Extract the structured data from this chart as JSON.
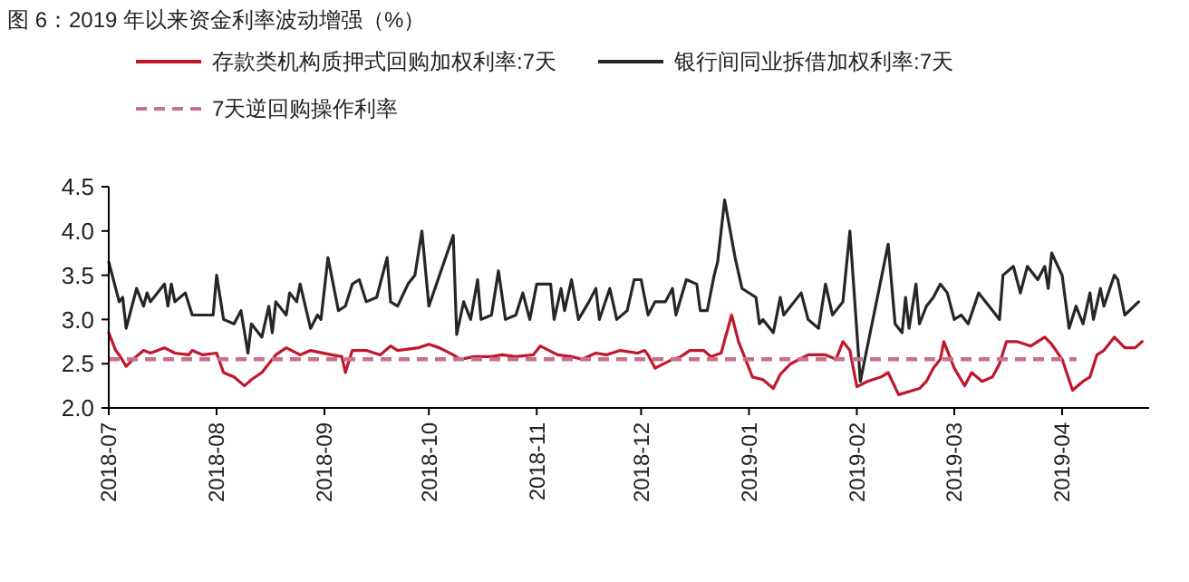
{
  "chart_data": {
    "type": "line",
    "title": "图 6：2019 年以来资金利率波动增强（%）",
    "xlim": [
      "2018-07-01",
      "2019-04-26"
    ],
    "xticks": [
      {
        "value": "2018-07-01",
        "label": "2018-07"
      },
      {
        "value": "2018-08-01",
        "label": "2018-08"
      },
      {
        "value": "2018-09-01",
        "label": "2018-09"
      },
      {
        "value": "2018-10-01",
        "label": "2018-10"
      },
      {
        "value": "2018-11-01",
        "label": "2018-11"
      },
      {
        "value": "2018-12-01",
        "label": "2018-12"
      },
      {
        "value": "2019-01-01",
        "label": "2019-01"
      },
      {
        "value": "2019-02-01",
        "label": "2019-02"
      },
      {
        "value": "2019-03-01",
        "label": "2019-03"
      },
      {
        "value": "2019-04-01",
        "label": "2019-04"
      }
    ],
    "ylim": [
      2,
      4.5
    ],
    "yticks": [
      {
        "value": 2,
        "label": "2.0"
      },
      {
        "value": 2.5,
        "label": "2.5"
      },
      {
        "value": 3,
        "label": "3.0"
      },
      {
        "value": 3.5,
        "label": "3.5"
      },
      {
        "value": 4,
        "label": "4.0"
      },
      {
        "value": 4.5,
        "label": "4.5"
      }
    ],
    "grid": false,
    "legend": "top",
    "line_style": "solid",
    "marker": "none",
    "series": [
      {
        "name": "存款类机构质押式回购加权利率:7天",
        "color": "#c0172d",
        "x": [
          "2018-07-01",
          "2018-07-03",
          "2018-07-04",
          "2018-07-06",
          "2018-07-08",
          "2018-07-11",
          "2018-07-13",
          "2018-07-17",
          "2018-07-20",
          "2018-07-24",
          "2018-07-25",
          "2018-07-28",
          "2018-08-01",
          "2018-08-03",
          "2018-08-06",
          "2018-08-09",
          "2018-08-11",
          "2018-08-14",
          "2018-08-18",
          "2018-08-21",
          "2018-08-25",
          "2018-08-28",
          "2018-09-03",
          "2018-09-06",
          "2018-09-07",
          "2018-09-09",
          "2018-09-13",
          "2018-09-17",
          "2018-09-20",
          "2018-09-22",
          "2018-09-28",
          "2018-10-01",
          "2018-10-04",
          "2018-10-08",
          "2018-10-10",
          "2018-10-14",
          "2018-10-19",
          "2018-10-22",
          "2018-10-26",
          "2018-10-31",
          "2018-11-02",
          "2018-11-07",
          "2018-11-11",
          "2018-11-14",
          "2018-11-18",
          "2018-11-21",
          "2018-11-25",
          "2018-11-30",
          "2018-12-02",
          "2018-12-03",
          "2018-12-05",
          "2018-12-10",
          "2018-12-12",
          "2018-12-15",
          "2018-12-19",
          "2018-12-21",
          "2018-12-24",
          "2018-12-27",
          "2018-12-29",
          "2019-01-02",
          "2019-01-05",
          "2019-01-08",
          "2019-01-10",
          "2019-01-13",
          "2019-01-18",
          "2019-01-23",
          "2019-01-26",
          "2019-01-28",
          "2019-01-30",
          "2019-02-01",
          "2019-02-04",
          "2019-02-08",
          "2019-02-10",
          "2019-02-13",
          "2019-02-19",
          "2019-02-21",
          "2019-02-23",
          "2019-02-25",
          "2019-02-26",
          "2019-03-01",
          "2019-03-04",
          "2019-03-06",
          "2019-03-09",
          "2019-03-12",
          "2019-03-14",
          "2019-03-16",
          "2019-03-19",
          "2019-03-23",
          "2019-03-27",
          "2019-03-29",
          "2019-04-01",
          "2019-04-04",
          "2019-04-07",
          "2019-04-09",
          "2019-04-11",
          "2019-04-13",
          "2019-04-16",
          "2019-04-19",
          "2019-04-22",
          "2019-04-24"
        ],
        "values": [
          2.85,
          2.65,
          2.6,
          2.47,
          2.55,
          2.65,
          2.62,
          2.68,
          2.62,
          2.6,
          2.65,
          2.6,
          2.62,
          2.4,
          2.35,
          2.25,
          2.32,
          2.4,
          2.6,
          2.68,
          2.6,
          2.65,
          2.6,
          2.58,
          2.4,
          2.65,
          2.65,
          2.6,
          2.7,
          2.65,
          2.68,
          2.72,
          2.68,
          2.6,
          2.55,
          2.58,
          2.58,
          2.6,
          2.58,
          2.6,
          2.7,
          2.6,
          2.58,
          2.55,
          2.62,
          2.6,
          2.65,
          2.62,
          2.65,
          2.6,
          2.45,
          2.55,
          2.57,
          2.65,
          2.65,
          2.58,
          2.62,
          3.05,
          2.75,
          2.35,
          2.32,
          2.22,
          2.38,
          2.5,
          2.6,
          2.6,
          2.55,
          2.75,
          2.65,
          2.24,
          2.3,
          2.35,
          2.4,
          2.15,
          2.22,
          2.3,
          2.45,
          2.55,
          2.75,
          2.45,
          2.25,
          2.4,
          2.3,
          2.35,
          2.5,
          2.75,
          2.75,
          2.7,
          2.8,
          2.72,
          2.55,
          2.2,
          2.3,
          2.35,
          2.6,
          2.65,
          2.8,
          2.68,
          2.68,
          2.75
        ]
      },
      {
        "name": "银行间同业拆借加权利率:7天",
        "color": "#262626",
        "x": [
          "2018-07-01",
          "2018-07-04",
          "2018-07-05",
          "2018-07-06",
          "2018-07-09",
          "2018-07-11",
          "2018-07-12",
          "2018-07-13",
          "2018-07-17",
          "2018-07-18",
          "2018-07-19",
          "2018-07-20",
          "2018-07-23",
          "2018-07-25",
          "2018-07-31",
          "2018-08-01",
          "2018-08-03",
          "2018-08-06",
          "2018-08-08",
          "2018-08-10",
          "2018-08-11",
          "2018-08-14",
          "2018-08-16",
          "2018-08-17",
          "2018-08-18",
          "2018-08-21",
          "2018-08-22",
          "2018-08-24",
          "2018-08-25",
          "2018-08-28",
          "2018-08-30",
          "2018-08-31",
          "2018-09-02",
          "2018-09-05",
          "2018-09-07",
          "2018-09-09",
          "2018-09-11",
          "2018-09-13",
          "2018-09-16",
          "2018-09-19",
          "2018-09-20",
          "2018-09-22",
          "2018-09-25",
          "2018-09-27",
          "2018-09-29",
          "2018-10-01",
          "2018-10-08",
          "2018-10-09",
          "2018-10-11",
          "2018-10-13",
          "2018-10-15",
          "2018-10-16",
          "2018-10-19",
          "2018-10-21",
          "2018-10-23",
          "2018-10-26",
          "2018-10-28",
          "2018-10-30",
          "2018-11-01",
          "2018-11-05",
          "2018-11-06",
          "2018-11-08",
          "2018-11-09",
          "2018-11-11",
          "2018-11-13",
          "2018-11-16",
          "2018-11-18",
          "2018-11-19",
          "2018-11-22",
          "2018-11-24",
          "2018-11-27",
          "2018-11-29",
          "2018-12-01",
          "2018-12-03",
          "2018-12-05",
          "2018-12-08",
          "2018-12-10",
          "2018-12-11",
          "2018-12-14",
          "2018-12-17",
          "2018-12-18",
          "2018-12-20",
          "2018-12-22",
          "2018-12-23",
          "2018-12-25",
          "2018-12-28",
          "2018-12-30",
          "2019-01-03",
          "2019-01-04",
          "2019-01-05",
          "2019-01-08",
          "2019-01-10",
          "2019-01-11",
          "2019-01-14",
          "2019-01-16",
          "2019-01-18",
          "2019-01-21",
          "2019-01-23",
          "2019-01-25",
          "2019-01-28",
          "2019-01-30",
          "2019-02-02",
          "2019-02-10",
          "2019-02-12",
          "2019-02-14",
          "2019-02-15",
          "2019-02-16",
          "2019-02-18",
          "2019-02-19",
          "2019-02-21",
          "2019-02-23",
          "2019-02-25",
          "2019-02-27",
          "2019-03-01",
          "2019-03-03",
          "2019-03-05",
          "2019-03-08",
          "2019-03-11",
          "2019-03-13",
          "2019-03-14",
          "2019-03-15",
          "2019-03-18",
          "2019-03-20",
          "2019-03-22",
          "2019-03-25",
          "2019-03-27",
          "2019-03-28",
          "2019-03-29",
          "2019-04-01",
          "2019-04-03",
          "2019-04-05",
          "2019-04-07",
          "2019-04-09",
          "2019-04-10",
          "2019-04-12",
          "2019-04-13",
          "2019-04-16",
          "2019-04-17",
          "2019-04-19",
          "2019-04-23"
        ],
        "values": [
          3.65,
          3.2,
          3.25,
          2.9,
          3.35,
          3.15,
          3.3,
          3.2,
          3.4,
          3.15,
          3.4,
          3.2,
          3.3,
          3.05,
          3.05,
          3.5,
          3.0,
          2.95,
          3.1,
          2.62,
          2.95,
          2.8,
          3.15,
          2.85,
          3.2,
          3.05,
          3.3,
          3.2,
          3.4,
          2.9,
          3.05,
          3.0,
          3.7,
          3.1,
          3.15,
          3.4,
          3.45,
          3.2,
          3.25,
          3.7,
          3.2,
          3.15,
          3.4,
          3.5,
          4.0,
          3.15,
          3.95,
          2.83,
          3.2,
          3.0,
          3.45,
          3.0,
          3.05,
          3.55,
          3.0,
          3.05,
          3.3,
          3.0,
          3.4,
          3.4,
          3.0,
          3.35,
          3.1,
          3.45,
          3.0,
          3.2,
          3.35,
          3.0,
          3.35,
          3.0,
          3.1,
          3.45,
          3.45,
          3.05,
          3.2,
          3.2,
          3.35,
          3.05,
          3.45,
          3.4,
          3.1,
          3.1,
          3.5,
          3.65,
          4.35,
          3.7,
          3.35,
          3.25,
          2.95,
          3.0,
          2.85,
          3.25,
          3.05,
          3.2,
          3.3,
          3.0,
          2.9,
          3.4,
          3.05,
          3.2,
          4.0,
          2.3,
          3.85,
          2.95,
          2.85,
          3.25,
          2.9,
          3.4,
          2.95,
          3.15,
          3.25,
          3.4,
          3.3,
          3.0,
          3.05,
          2.95,
          3.3,
          3.15,
          3.05,
          3.0,
          3.5,
          3.6,
          3.3,
          3.6,
          3.45,
          3.6,
          3.35,
          3.75,
          3.5,
          2.9,
          3.15,
          2.95,
          3.3,
          3.0,
          3.35,
          3.15,
          3.5,
          3.45,
          3.05,
          3.2
        ]
      }
    ],
    "ref_lines": [
      {
        "axis": "y",
        "value": 2.55,
        "label": "7天逆回购操作利率",
        "color": "#c9708a",
        "line_style": "dashed"
      }
    ]
  }
}
